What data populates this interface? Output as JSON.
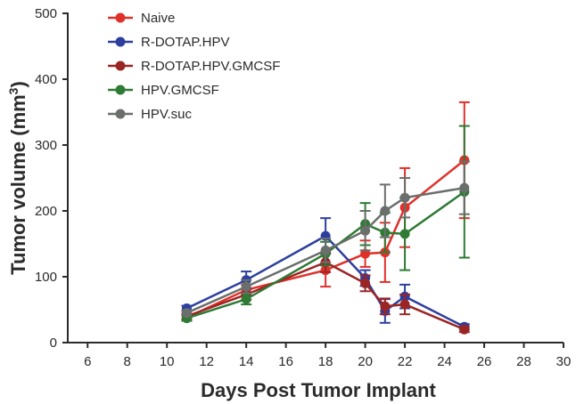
{
  "chart_data": {
    "type": "line",
    "xlabel": "Days Post Tumor Implant",
    "ylabel": "Tumor volume (mm",
    "ylabel_sup": "3",
    "ylabel_close": ")",
    "xlim": [
      5,
      30
    ],
    "ylim": [
      0,
      500
    ],
    "xticks": [
      6,
      8,
      10,
      12,
      14,
      16,
      18,
      20,
      22,
      24,
      26,
      28,
      30
    ],
    "yticks": [
      0,
      100,
      200,
      300,
      400,
      500
    ],
    "grid": false,
    "legend_position": "top-left",
    "series": [
      {
        "name": "Naive",
        "color": "#e0302a",
        "points": [
          {
            "x": 11,
            "y": 38,
            "err": 4
          },
          {
            "x": 14,
            "y": 80,
            "err": 8
          },
          {
            "x": 18,
            "y": 110,
            "err": 25
          },
          {
            "x": 20,
            "y": 135,
            "err": 20
          },
          {
            "x": 21,
            "y": 137,
            "err": 45
          },
          {
            "x": 22,
            "y": 205,
            "err": 60
          },
          {
            "x": 25,
            "y": 277,
            "err": 88
          }
        ]
      },
      {
        "name": "R-DOTAP.HPV",
        "color": "#2c3f9e",
        "points": [
          {
            "x": 11,
            "y": 52,
            "err": 4
          },
          {
            "x": 14,
            "y": 95,
            "err": 13
          },
          {
            "x": 18,
            "y": 162,
            "err": 27
          },
          {
            "x": 20,
            "y": 98,
            "err": 12
          },
          {
            "x": 21,
            "y": 48,
            "err": 18
          },
          {
            "x": 22,
            "y": 70,
            "err": 18
          },
          {
            "x": 25,
            "y": 24,
            "err": 4
          }
        ]
      },
      {
        "name": "R-DOTAP.HPV.GMCSF",
        "color": "#9b2525",
        "points": [
          {
            "x": 11,
            "y": 40,
            "err": 4
          },
          {
            "x": 14,
            "y": 73,
            "err": 8
          },
          {
            "x": 18,
            "y": 122,
            "err": 15
          },
          {
            "x": 20,
            "y": 90,
            "err": 12
          },
          {
            "x": 21,
            "y": 55,
            "err": 12
          },
          {
            "x": 22,
            "y": 58,
            "err": 15
          },
          {
            "x": 25,
            "y": 20,
            "err": 4
          }
        ]
      },
      {
        "name": "HPV.GMCSF",
        "color": "#2f7a34",
        "points": [
          {
            "x": 11,
            "y": 37,
            "err": 4
          },
          {
            "x": 14,
            "y": 66,
            "err": 8
          },
          {
            "x": 18,
            "y": 135,
            "err": 18
          },
          {
            "x": 20,
            "y": 180,
            "err": 32
          },
          {
            "x": 21,
            "y": 167,
            "err": 30
          },
          {
            "x": 22,
            "y": 165,
            "err": 55
          },
          {
            "x": 25,
            "y": 229,
            "err": 100
          }
        ]
      },
      {
        "name": "HPV.suc",
        "color": "#6b6f6c",
        "points": [
          {
            "x": 11,
            "y": 45,
            "err": 4
          },
          {
            "x": 14,
            "y": 85,
            "err": 10
          },
          {
            "x": 18,
            "y": 140,
            "err": 18
          },
          {
            "x": 20,
            "y": 170,
            "err": 30
          },
          {
            "x": 21,
            "y": 200,
            "err": 40
          },
          {
            "x": 22,
            "y": 220,
            "err": 30
          },
          {
            "x": 25,
            "y": 235,
            "err": 40
          }
        ]
      }
    ]
  }
}
